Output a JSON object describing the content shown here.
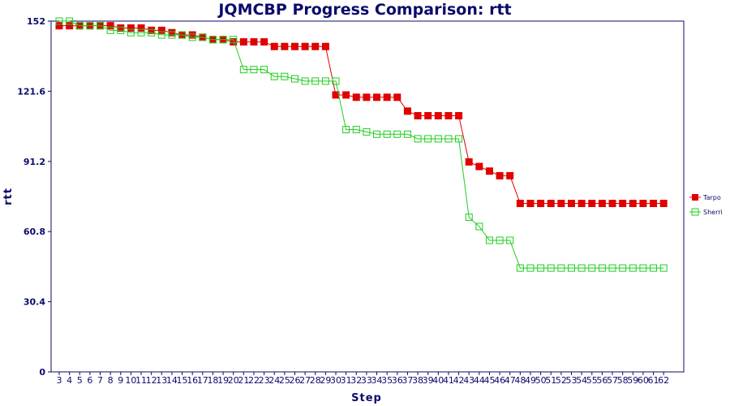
{
  "chart_data": {
    "type": "line",
    "title": "JQMCBP Progress Comparison: rtt",
    "xlabel": "Step",
    "ylabel": "rtt",
    "ylim": [
      0,
      152
    ],
    "yticks": [
      "0",
      "30.4",
      "60.8",
      "91.2",
      "121.6",
      "152"
    ],
    "x": [
      3,
      4,
      5,
      6,
      7,
      8,
      9,
      10,
      11,
      12,
      13,
      14,
      15,
      16,
      17,
      18,
      19,
      20,
      21,
      22,
      23,
      24,
      25,
      26,
      27,
      28,
      29,
      30,
      31,
      32,
      33,
      34,
      35,
      36,
      37,
      38,
      39,
      40,
      41,
      42,
      43,
      44,
      45,
      46,
      47,
      48,
      49,
      50,
      51,
      52,
      53,
      54,
      55,
      56,
      57,
      58,
      59,
      60,
      61,
      62
    ],
    "legend_position": "right",
    "grid": false,
    "series": [
      {
        "name": "Tarpo",
        "color": "#e00000",
        "marker": "filled-square",
        "values": [
          150,
          150,
          150,
          150,
          150,
          150,
          149,
          149,
          149,
          148,
          148,
          147,
          146,
          146,
          145,
          144,
          144,
          143,
          143,
          143,
          143,
          141,
          141,
          141,
          141,
          141,
          141,
          120,
          120,
          119,
          119,
          119,
          119,
          119,
          113,
          111,
          111,
          111,
          111,
          111,
          91,
          89,
          87,
          85,
          85,
          73,
          73,
          73,
          73,
          73,
          73,
          73,
          73,
          73,
          73,
          73,
          73,
          73,
          73,
          73
        ]
      },
      {
        "name": "Sherri",
        "color": "#22cc22",
        "marker": "hollow-square",
        "values": [
          152,
          152,
          150,
          150,
          150,
          148,
          148,
          147,
          147,
          147,
          146,
          146,
          146,
          145,
          145,
          144,
          144,
          144,
          131,
          131,
          131,
          128,
          128,
          127,
          126,
          126,
          126,
          126,
          105,
          105,
          104,
          103,
          103,
          103,
          103,
          101,
          101,
          101,
          101,
          101,
          67,
          63,
          57,
          57,
          57,
          45,
          45,
          45,
          45,
          45,
          45,
          45,
          45,
          45,
          45,
          45,
          45,
          45,
          45,
          45
        ]
      }
    ]
  }
}
